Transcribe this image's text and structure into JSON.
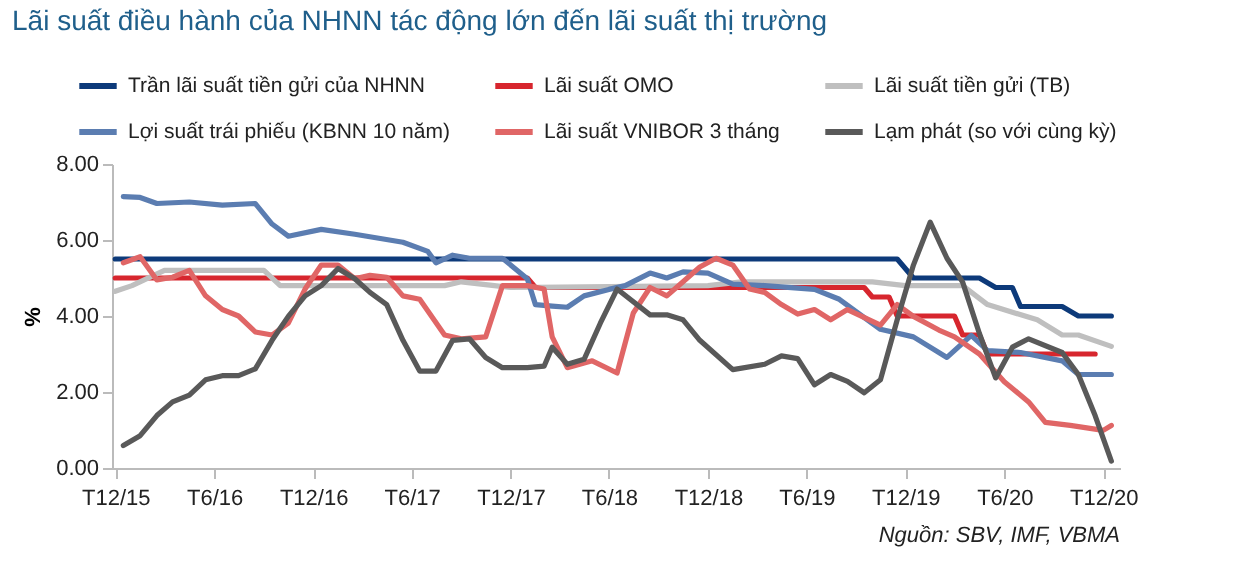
{
  "chart_data": {
    "type": "line",
    "title": "Lãi suất điều hành của NHNN tác động lớn đến lãi suất thị trường",
    "ylabel": "%",
    "annotations": [
      "Nguồn: SBV, IMF, VBMA"
    ],
    "xlim": [
      "2015-11-25",
      "2021-01-01"
    ],
    "xticks": [
      {
        "value": "2015-12-01",
        "label": "T12/15"
      },
      {
        "value": "2016-06-01",
        "label": "T6/16"
      },
      {
        "value": "2016-12-01",
        "label": "T12/16"
      },
      {
        "value": "2017-06-01",
        "label": "T6/17"
      },
      {
        "value": "2017-12-01",
        "label": "T12/17"
      },
      {
        "value": "2018-06-01",
        "label": "T6/18"
      },
      {
        "value": "2018-12-01",
        "label": "T12/18"
      },
      {
        "value": "2019-06-01",
        "label": "T6/19"
      },
      {
        "value": "2019-12-01",
        "label": "T12/19"
      },
      {
        "value": "2020-06-01",
        "label": "T6/20"
      },
      {
        "value": "2020-12-01",
        "label": "T12/20"
      }
    ],
    "ylim": [
      0,
      8
    ],
    "yticks": [
      {
        "value": 0,
        "label": "0.00"
      },
      {
        "value": 2,
        "label": "2.00"
      },
      {
        "value": 4,
        "label": "4.00"
      },
      {
        "value": 6,
        "label": "6.00"
      },
      {
        "value": 8,
        "label": "8.00"
      }
    ],
    "grid": false,
    "legend": "top",
    "line_style": "solid",
    "series": [
      {
        "name": "Trần lãi suất tiền gửi của NHNN",
        "color": "#0d3a7a",
        "x": [
          "2015-12-01",
          "2019-11-16",
          "2019-12-16",
          "2020-04-16",
          "2020-05-16",
          "2020-06-16",
          "2020-07-01",
          "2020-09-16",
          "2020-10-16",
          "2020-12-16"
        ],
        "values": [
          5.5,
          5.5,
          5.0,
          5.0,
          4.75,
          4.75,
          4.25,
          4.25,
          4.0,
          4.0
        ]
      },
      {
        "name": "Lãi suất OMO",
        "color": "#d7262e",
        "x": [
          "2015-12-01",
          "2018-01-01",
          "2018-01-16",
          "2019-09-16",
          "2019-10-01",
          "2019-11-01",
          "2019-11-16",
          "2020-03-01",
          "2020-03-16",
          "2020-04-16",
          "2020-05-01",
          "2020-11-16"
        ],
        "values": [
          5.0,
          5.0,
          4.75,
          4.75,
          4.5,
          4.5,
          4.0,
          4.0,
          3.5,
          3.5,
          3.0,
          3.0
        ]
      },
      {
        "name": "Lãi suất tiền gửi (TB)",
        "color": "#bfbfbf",
        "x": [
          "2015-12-01",
          "2016-01-01",
          "2016-03-01",
          "2016-09-01",
          "2016-10-01",
          "2017-08-01",
          "2017-09-01",
          "2017-11-01",
          "2017-12-01",
          "2018-12-01",
          "2019-02-01",
          "2019-10-01",
          "2019-12-01",
          "2020-03-16",
          "2020-05-01",
          "2020-08-01",
          "2020-09-16",
          "2020-10-16",
          "2020-12-16"
        ],
        "values": [
          4.65,
          4.8,
          5.2,
          5.2,
          4.8,
          4.8,
          4.9,
          4.8,
          4.75,
          4.8,
          4.9,
          4.9,
          4.8,
          4.8,
          4.3,
          3.9,
          3.5,
          3.5,
          3.2
        ]
      },
      {
        "name": "Lợi suất trái phiếu (KBNN 10 năm)",
        "color": "#5b7db1",
        "x": [
          "2015-12-16",
          "2016-01-16",
          "2016-02-16",
          "2016-04-16",
          "2016-06-16",
          "2016-08-16",
          "2016-09-16",
          "2016-10-16",
          "2016-12-16",
          "2017-02-16",
          "2017-05-16",
          "2017-07-01",
          "2017-07-16",
          "2017-08-16",
          "2017-09-16",
          "2017-11-16",
          "2018-01-01",
          "2018-01-16",
          "2018-02-16",
          "2018-03-16",
          "2018-04-16",
          "2018-06-01",
          "2018-07-01",
          "2018-08-16",
          "2018-09-16",
          "2018-10-16",
          "2018-12-01",
          "2019-01-16",
          "2019-03-16",
          "2019-06-16",
          "2019-08-01",
          "2019-10-16",
          "2019-12-16",
          "2020-02-16",
          "2020-04-01",
          "2020-05-01",
          "2020-07-01",
          "2020-09-16",
          "2020-10-16",
          "2020-12-16"
        ],
        "values": [
          7.14,
          7.12,
          6.96,
          7.0,
          6.92,
          6.96,
          6.42,
          6.1,
          6.28,
          6.15,
          5.94,
          5.7,
          5.4,
          5.6,
          5.52,
          5.52,
          4.98,
          4.3,
          4.26,
          4.23,
          4.53,
          4.7,
          4.8,
          5.13,
          5.0,
          5.16,
          5.13,
          4.84,
          4.8,
          4.7,
          4.44,
          3.65,
          3.45,
          2.91,
          3.49,
          3.09,
          3.04,
          2.82,
          2.46,
          2.46
        ]
      },
      {
        "name": "Lãi suất VNIBOR 3 tháng",
        "color": "#e06666",
        "x": [
          "2015-12-16",
          "2016-01-16",
          "2016-02-16",
          "2016-03-16",
          "2016-04-16",
          "2016-05-16",
          "2016-06-16",
          "2016-07-16",
          "2016-08-16",
          "2016-09-16",
          "2016-10-16",
          "2016-11-16",
          "2016-12-16",
          "2017-01-16",
          "2017-02-16",
          "2017-03-16",
          "2017-04-16",
          "2017-05-16",
          "2017-06-16",
          "2017-08-01",
          "2017-09-01",
          "2017-10-16",
          "2017-11-16",
          "2018-01-01",
          "2018-02-01",
          "2018-02-16",
          "2018-03-16",
          "2018-05-01",
          "2018-06-16",
          "2018-07-16",
          "2018-08-16",
          "2018-09-16",
          "2018-10-16",
          "2018-11-16",
          "2018-12-16",
          "2019-01-16",
          "2019-02-16",
          "2019-03-16",
          "2019-04-16",
          "2019-05-16",
          "2019-06-16",
          "2019-07-16",
          "2019-08-16",
          "2019-10-16",
          "2019-11-16",
          "2019-12-16",
          "2020-02-01",
          "2020-03-01",
          "2020-04-16",
          "2020-06-01",
          "2020-07-16",
          "2020-08-16",
          "2020-10-01",
          "2020-12-01",
          "2020-12-16"
        ],
        "values": [
          5.4,
          5.56,
          4.95,
          5.02,
          5.2,
          4.53,
          4.17,
          4.0,
          3.58,
          3.5,
          3.81,
          4.71,
          5.34,
          5.34,
          4.98,
          5.07,
          5.02,
          4.53,
          4.44,
          3.5,
          3.4,
          3.45,
          4.8,
          4.8,
          4.71,
          3.45,
          2.64,
          2.82,
          2.5,
          4.08,
          4.75,
          4.53,
          4.9,
          5.29,
          5.52,
          5.34,
          4.71,
          4.62,
          4.3,
          4.05,
          4.17,
          3.9,
          4.17,
          3.76,
          4.3,
          3.99,
          3.63,
          3.45,
          3.0,
          2.27,
          1.74,
          1.2,
          1.12,
          0.99,
          1.12
        ]
      },
      {
        "name": "Lạm phát (so với cùng kỳ)",
        "color": "#595959",
        "x": [
          "2015-12-16",
          "2016-01-16",
          "2016-02-16",
          "2016-03-16",
          "2016-04-16",
          "2016-05-16",
          "2016-06-16",
          "2016-07-16",
          "2016-08-16",
          "2016-09-16",
          "2016-10-16",
          "2016-11-16",
          "2016-12-16",
          "2017-01-16",
          "2017-02-16",
          "2017-03-16",
          "2017-04-16",
          "2017-05-16",
          "2017-06-16",
          "2017-07-16",
          "2017-08-16",
          "2017-09-16",
          "2017-10-16",
          "2017-11-16",
          "2018-01-01",
          "2018-02-01",
          "2018-02-16",
          "2018-03-16",
          "2018-04-16",
          "2018-05-16",
          "2018-06-16",
          "2018-08-16",
          "2018-09-16",
          "2018-10-16",
          "2018-11-16",
          "2019-01-16",
          "2019-03-16",
          "2019-04-16",
          "2019-05-16",
          "2019-06-16",
          "2019-07-16",
          "2019-08-16",
          "2019-09-16",
          "2019-10-16",
          "2019-11-16",
          "2019-12-16",
          "2020-01-16",
          "2020-02-16",
          "2020-03-16",
          "2020-04-16",
          "2020-05-16",
          "2020-06-16",
          "2020-07-16",
          "2020-09-16",
          "2020-10-16",
          "2020-11-16",
          "2020-12-16"
        ],
        "values": [
          0.59,
          0.85,
          1.38,
          1.74,
          1.92,
          2.32,
          2.43,
          2.43,
          2.61,
          3.36,
          3.99,
          4.53,
          4.8,
          5.25,
          4.98,
          4.62,
          4.3,
          3.36,
          2.55,
          2.55,
          3.36,
          3.4,
          2.91,
          2.64,
          2.64,
          2.68,
          3.18,
          2.73,
          2.86,
          3.81,
          4.71,
          4.03,
          4.03,
          3.9,
          3.36,
          2.59,
          2.73,
          2.95,
          2.88,
          2.19,
          2.46,
          2.28,
          1.98,
          2.32,
          3.9,
          5.34,
          6.47,
          5.52,
          4.89,
          3.54,
          2.37,
          3.18,
          3.4,
          3.04,
          2.46,
          1.38,
          0.18
        ]
      }
    ]
  }
}
